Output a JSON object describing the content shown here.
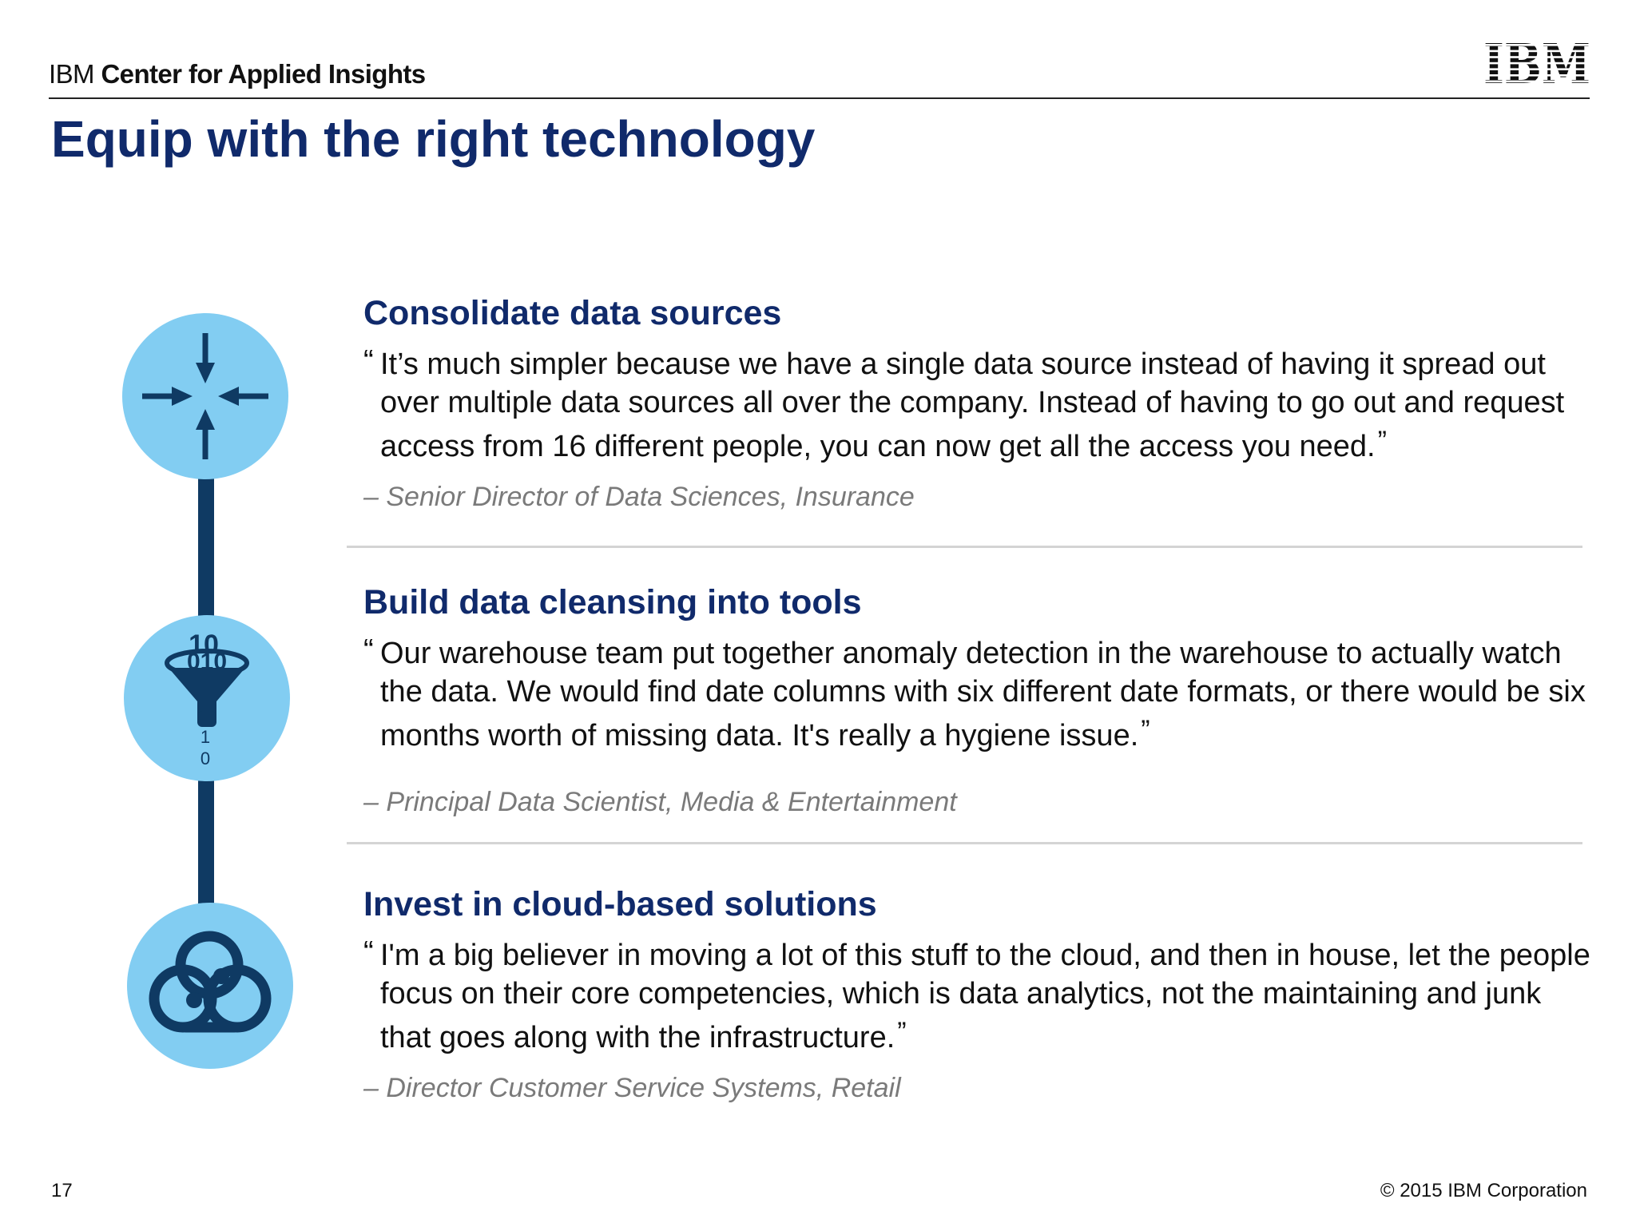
{
  "header": {
    "brand_prefix": "IBM",
    "brand_name": "Center for Applied Insights",
    "logo_text": "IBM"
  },
  "title": "Equip with the right technology",
  "sections": [
    {
      "icon": "converge-arrows-icon",
      "heading": "Consolidate data sources",
      "quote": "It’s much simpler because we have a single data source instead of having it spread out over multiple data sources all over the company. Instead of having to go out and request access from 16 different people, you can now get all the access you need.",
      "attribution": "– Senior Director of Data Sciences, Insurance"
    },
    {
      "icon": "data-funnel-icon",
      "icon_digits_top": "10",
      "icon_digits_mid": "010",
      "icon_digits_out": "1 0",
      "heading": "Build data cleansing into tools",
      "quote": "Our warehouse team put together anomaly detection in the warehouse to actually watch the data. We would find date columns with six different date formats, or there would be six months worth of missing data. It's really a hygiene issue.",
      "attribution": "– Principal Data Scientist, Media & Entertainment"
    },
    {
      "icon": "cloud-icon",
      "heading": "Invest in cloud-based solutions",
      "quote": "I'm a big believer in moving a lot of this stuff to the cloud, and then in house, let the people focus on their core competencies, which is data analytics, not the maintaining and junk that goes along with the infrastructure.",
      "attribution": "– Director Customer Service Systems, Retail"
    }
  ],
  "quote_marks": {
    "open": "“",
    "close": "”"
  },
  "footer": {
    "page_number": "17",
    "copyright": "© 2015 IBM Corporation"
  },
  "colors": {
    "title": "#102a6b",
    "circle": "#82cdf2",
    "icon": "#0f3a63",
    "attribution": "#7a7a7a"
  }
}
